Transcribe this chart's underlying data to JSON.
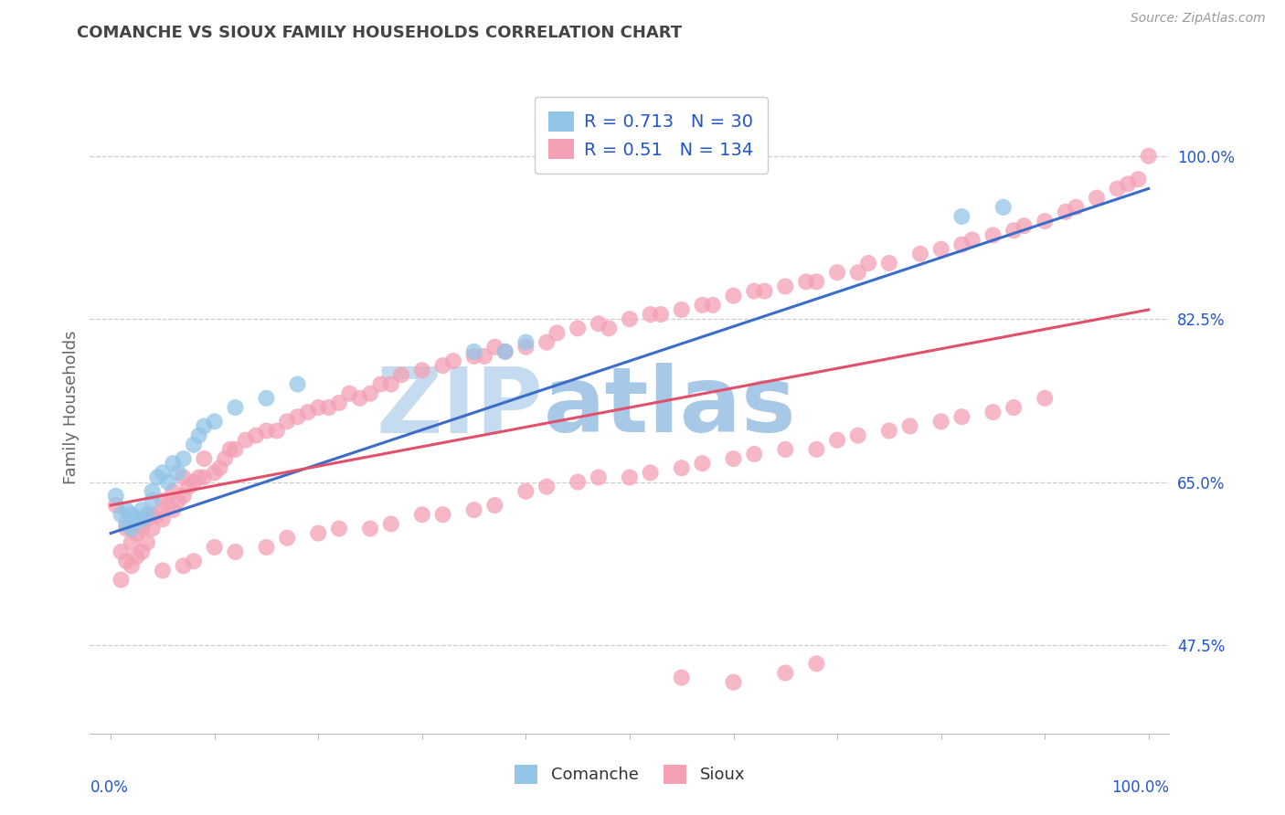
{
  "title": "COMANCHE VS SIOUX FAMILY HOUSEHOLDS CORRELATION CHART",
  "source": "Source: ZipAtlas.com",
  "ylabel": "Family Households",
  "y_tick_labels": [
    "47.5%",
    "65.0%",
    "82.5%",
    "100.0%"
  ],
  "y_tick_values": [
    0.475,
    0.65,
    0.825,
    1.0
  ],
  "x_range": [
    -0.02,
    1.02
  ],
  "y_range": [
    0.38,
    1.08
  ],
  "comanche_R": 0.713,
  "comanche_N": 30,
  "sioux_R": 0.51,
  "sioux_N": 134,
  "comanche_color": "#92C5E8",
  "sioux_color": "#F4A0B5",
  "comanche_line_color": "#3A6CC8",
  "sioux_line_color": "#E0506A",
  "legend_text_color": "#2255CC",
  "title_color": "#444444",
  "watermark_main": "ZIP",
  "watermark_sub": "atlas",
  "watermark_color": "#C5DCF0",
  "watermark_subcolor": "#A8C8E8",
  "grid_color": "#CCCCCC",
  "background_color": "#FFFFFF",
  "comanche_x": [
    0.005,
    0.01,
    0.015,
    0.015,
    0.02,
    0.02,
    0.025,
    0.03,
    0.03,
    0.035,
    0.04,
    0.04,
    0.045,
    0.05,
    0.055,
    0.06,
    0.065,
    0.07,
    0.08,
    0.085,
    0.09,
    0.1,
    0.12,
    0.15,
    0.18,
    0.35,
    0.38,
    0.4,
    0.82,
    0.86
  ],
  "comanche_y": [
    0.635,
    0.615,
    0.62,
    0.605,
    0.615,
    0.6,
    0.61,
    0.61,
    0.62,
    0.615,
    0.63,
    0.64,
    0.655,
    0.66,
    0.65,
    0.67,
    0.66,
    0.675,
    0.69,
    0.7,
    0.71,
    0.715,
    0.73,
    0.74,
    0.755,
    0.79,
    0.79,
    0.8,
    0.935,
    0.945
  ],
  "sioux_x": [
    0.005,
    0.01,
    0.01,
    0.015,
    0.015,
    0.02,
    0.02,
    0.025,
    0.025,
    0.03,
    0.03,
    0.035,
    0.035,
    0.04,
    0.04,
    0.045,
    0.05,
    0.05,
    0.055,
    0.06,
    0.06,
    0.065,
    0.07,
    0.07,
    0.075,
    0.08,
    0.085,
    0.09,
    0.09,
    0.1,
    0.105,
    0.11,
    0.115,
    0.12,
    0.13,
    0.14,
    0.15,
    0.16,
    0.17,
    0.18,
    0.19,
    0.2,
    0.21,
    0.22,
    0.23,
    0.24,
    0.25,
    0.26,
    0.27,
    0.28,
    0.3,
    0.32,
    0.33,
    0.35,
    0.36,
    0.37,
    0.38,
    0.4,
    0.42,
    0.43,
    0.45,
    0.47,
    0.48,
    0.5,
    0.52,
    0.53,
    0.55,
    0.57,
    0.58,
    0.6,
    0.62,
    0.63,
    0.65,
    0.67,
    0.68,
    0.7,
    0.72,
    0.73,
    0.75,
    0.78,
    0.8,
    0.82,
    0.83,
    0.85,
    0.87,
    0.88,
    0.9,
    0.92,
    0.93,
    0.95,
    0.97,
    0.98,
    0.99,
    1.0,
    0.05,
    0.07,
    0.08,
    0.1,
    0.12,
    0.15,
    0.17,
    0.2,
    0.22,
    0.25,
    0.27,
    0.3,
    0.32,
    0.35,
    0.37,
    0.4,
    0.42,
    0.45,
    0.47,
    0.5,
    0.52,
    0.55,
    0.57,
    0.6,
    0.62,
    0.65,
    0.68,
    0.7,
    0.72,
    0.75,
    0.77,
    0.8,
    0.82,
    0.85,
    0.87,
    0.9,
    0.55,
    0.6,
    0.65,
    0.68
  ],
  "sioux_y": [
    0.625,
    0.575,
    0.545,
    0.565,
    0.6,
    0.56,
    0.585,
    0.57,
    0.595,
    0.575,
    0.6,
    0.585,
    0.61,
    0.6,
    0.615,
    0.615,
    0.61,
    0.63,
    0.625,
    0.62,
    0.64,
    0.63,
    0.635,
    0.655,
    0.645,
    0.65,
    0.655,
    0.655,
    0.675,
    0.66,
    0.665,
    0.675,
    0.685,
    0.685,
    0.695,
    0.7,
    0.705,
    0.705,
    0.715,
    0.72,
    0.725,
    0.73,
    0.73,
    0.735,
    0.745,
    0.74,
    0.745,
    0.755,
    0.755,
    0.765,
    0.77,
    0.775,
    0.78,
    0.785,
    0.785,
    0.795,
    0.79,
    0.795,
    0.8,
    0.81,
    0.815,
    0.82,
    0.815,
    0.825,
    0.83,
    0.83,
    0.835,
    0.84,
    0.84,
    0.85,
    0.855,
    0.855,
    0.86,
    0.865,
    0.865,
    0.875,
    0.875,
    0.885,
    0.885,
    0.895,
    0.9,
    0.905,
    0.91,
    0.915,
    0.92,
    0.925,
    0.93,
    0.94,
    0.945,
    0.955,
    0.965,
    0.97,
    0.975,
    1.0,
    0.555,
    0.56,
    0.565,
    0.58,
    0.575,
    0.58,
    0.59,
    0.595,
    0.6,
    0.6,
    0.605,
    0.615,
    0.615,
    0.62,
    0.625,
    0.64,
    0.645,
    0.65,
    0.655,
    0.655,
    0.66,
    0.665,
    0.67,
    0.675,
    0.68,
    0.685,
    0.685,
    0.695,
    0.7,
    0.705,
    0.71,
    0.715,
    0.72,
    0.725,
    0.73,
    0.74,
    0.44,
    0.435,
    0.445,
    0.455
  ],
  "comanche_line_x": [
    0.0,
    1.0
  ],
  "comanche_line_y": [
    0.595,
    0.965
  ],
  "sioux_line_x": [
    0.0,
    1.0
  ],
  "sioux_line_y": [
    0.625,
    0.835
  ]
}
